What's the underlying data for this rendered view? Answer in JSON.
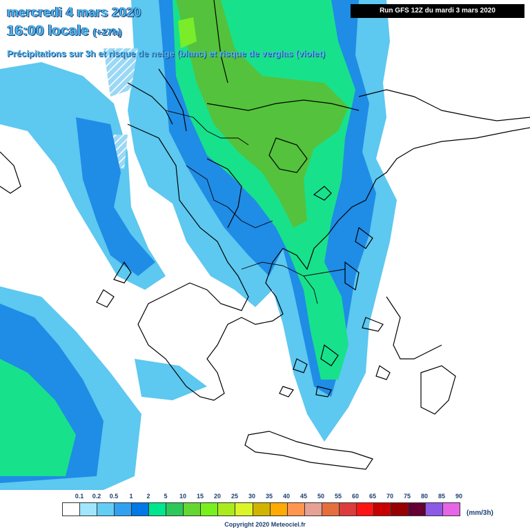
{
  "header": {
    "line1": "mercredi 4 mars 2020",
    "line2_time": "16:00 locale",
    "line2_offset": "(+27h)",
    "subtitle": "Précipitations sur 3h et risque de neige (blanc) et risque de verglas (violet)",
    "run_info": "Run GFS 12Z du mardi 3 mars 2020"
  },
  "legend": {
    "tick_labels": [
      "0.1",
      "0.2",
      "0.5",
      "1",
      "2",
      "5",
      "10",
      "15",
      "20",
      "25",
      "30",
      "35",
      "40",
      "45",
      "50",
      "55",
      "60",
      "65",
      "70",
      "75",
      "80",
      "85",
      "90"
    ],
    "colors": [
      "#ffffff",
      "#a0e6ff",
      "#64cdf5",
      "#32a0f0",
      "#0078e6",
      "#00e68c",
      "#2dc85a",
      "#64d732",
      "#78f01e",
      "#aaeb1e",
      "#dcf528",
      "#d2b400",
      "#ffaa00",
      "#ff9650",
      "#e6a096",
      "#e66e3c",
      "#dc3c3c",
      "#ff1414",
      "#c80000",
      "#960000",
      "#640032",
      "#8c5ae6",
      "#e664e6"
    ],
    "unit": "(mm/3h)"
  },
  "footer": {
    "copyright": "Copyright 2020 Meteociel.fr"
  }
}
